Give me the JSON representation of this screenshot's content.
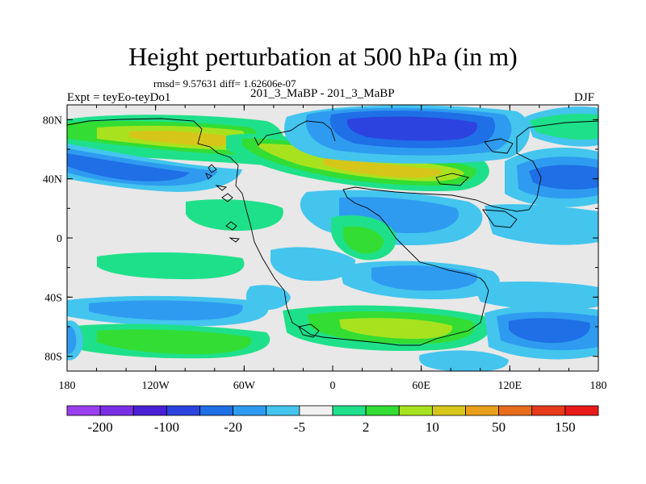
{
  "title": "Height perturbation at 500 hPa (in m)",
  "stats": "rmsd= 9.57631 diff= 1.62606e-07",
  "left_label": "Expt = teyEo-teyDo1",
  "center_label": "201_3_MaBP - 201_3_MaBP",
  "right_label": "DJF",
  "lat_ticks": [
    "80N",
    "40N",
    "0",
    "40S",
    "80S"
  ],
  "lon_ticks": [
    "180",
    "120W",
    "60W",
    "0",
    "60E",
    "120E",
    "180"
  ],
  "colorbar": {
    "colors": [
      "#9a3ff0",
      "#7a2fe6",
      "#4a1fd6",
      "#2c43e0",
      "#1f6fe6",
      "#2f9bf0",
      "#43c5ee",
      "#f0f0f0",
      "#1fe08a",
      "#33dd33",
      "#a8e21f",
      "#d6c61a",
      "#e8a01a",
      "#e86c1a",
      "#e83a1a",
      "#e81a1a"
    ],
    "labels": [
      "-200",
      "-100",
      "-20",
      "-5",
      "2",
      "10",
      "50",
      "150"
    ]
  },
  "colors": {
    "background": "#e8e8e8",
    "neg_light": "#43c5ee",
    "neg_mid": "#2f9bf0",
    "neg_strong": "#1f6fe6",
    "neg_deep": "#2c43e0",
    "pos_light": "#1fe08a",
    "pos_mid": "#33dd33",
    "pos_strong": "#a8e21f",
    "pos_deep": "#d6c61a"
  }
}
